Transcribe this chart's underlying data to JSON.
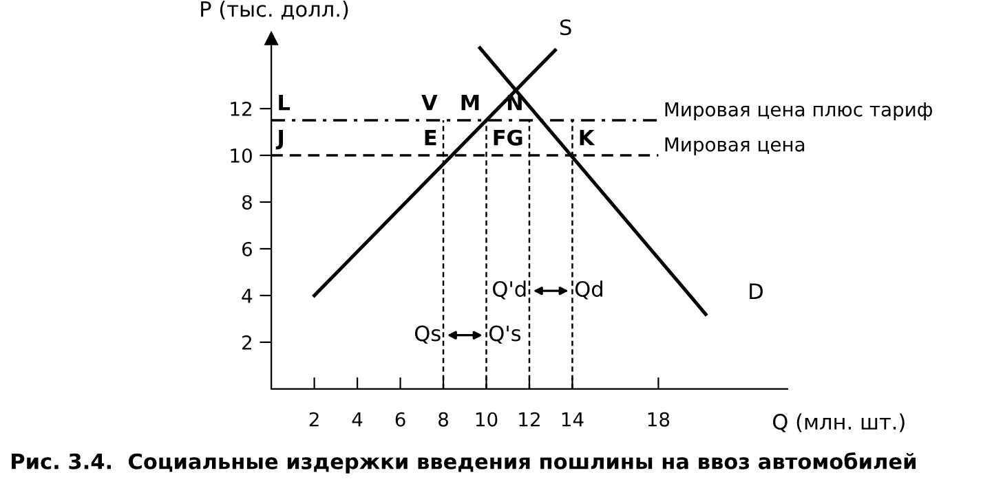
{
  "chart_data": {
    "type": "line",
    "xlabel": "Q (млн. шт.)",
    "ylabel": "P (тыс. долл.)",
    "xlim": [
      0,
      24
    ],
    "ylim": [
      0,
      15
    ],
    "xticks": [
      2,
      4,
      6,
      8,
      10,
      12,
      14,
      18
    ],
    "yticks": [
      2,
      4,
      6,
      8,
      10,
      12
    ],
    "grid": false,
    "legend": false,
    "marker": "none",
    "line_style": "solid",
    "series": [
      {
        "name": "S",
        "color": "#000000",
        "x": [
          2,
          13.2
        ],
        "values": [
          4,
          14.5
        ]
      },
      {
        "name": "D",
        "color": "#000000",
        "x": [
          9.7,
          20.2
        ],
        "values": [
          14.6,
          3.2
        ]
      }
    ],
    "ref_lines": [
      {
        "axis": "y",
        "value": 11.5,
        "label": "Мировая цена плюс тариф",
        "color": "#000000",
        "line_style": "dashdot"
      },
      {
        "axis": "y",
        "value": 10,
        "label": "Мировая цена",
        "color": "#000000",
        "line_style": "dashed"
      },
      {
        "axis": "x",
        "value": 8,
        "color": "#000000",
        "line_style": "dotted"
      },
      {
        "axis": "x",
        "value": 10,
        "color": "#000000",
        "line_style": "dotted"
      },
      {
        "axis": "x",
        "value": 12,
        "color": "#000000",
        "line_style": "dotted"
      },
      {
        "axis": "x",
        "value": 14,
        "color": "#000000",
        "line_style": "dotted"
      }
    ],
    "annotations": [
      {
        "text": "L",
        "x": 0,
        "y": 11.5
      },
      {
        "text": "V",
        "x": 8,
        "y": 11.5
      },
      {
        "text": "M",
        "x": 10,
        "y": 11.5
      },
      {
        "text": "N",
        "x": 12,
        "y": 11.5
      },
      {
        "text": "J",
        "x": 0,
        "y": 10
      },
      {
        "text": "E",
        "x": 8,
        "y": 10
      },
      {
        "text": "F",
        "x": 10,
        "y": 10
      },
      {
        "text": "G",
        "x": 12,
        "y": 10
      },
      {
        "text": "K",
        "x": 14,
        "y": 10
      },
      {
        "text": "Qs",
        "x": 8,
        "y": 2.3
      },
      {
        "text": "Q's",
        "x": 10,
        "y": 2.3
      },
      {
        "text": "Q'd",
        "x": 12,
        "y": 4.2
      },
      {
        "text": "Qd",
        "x": 14,
        "y": 4.2
      },
      "Рис. 3.4.  Социальные издержки введения пошлины на ввоз автомобилей"
    ]
  }
}
